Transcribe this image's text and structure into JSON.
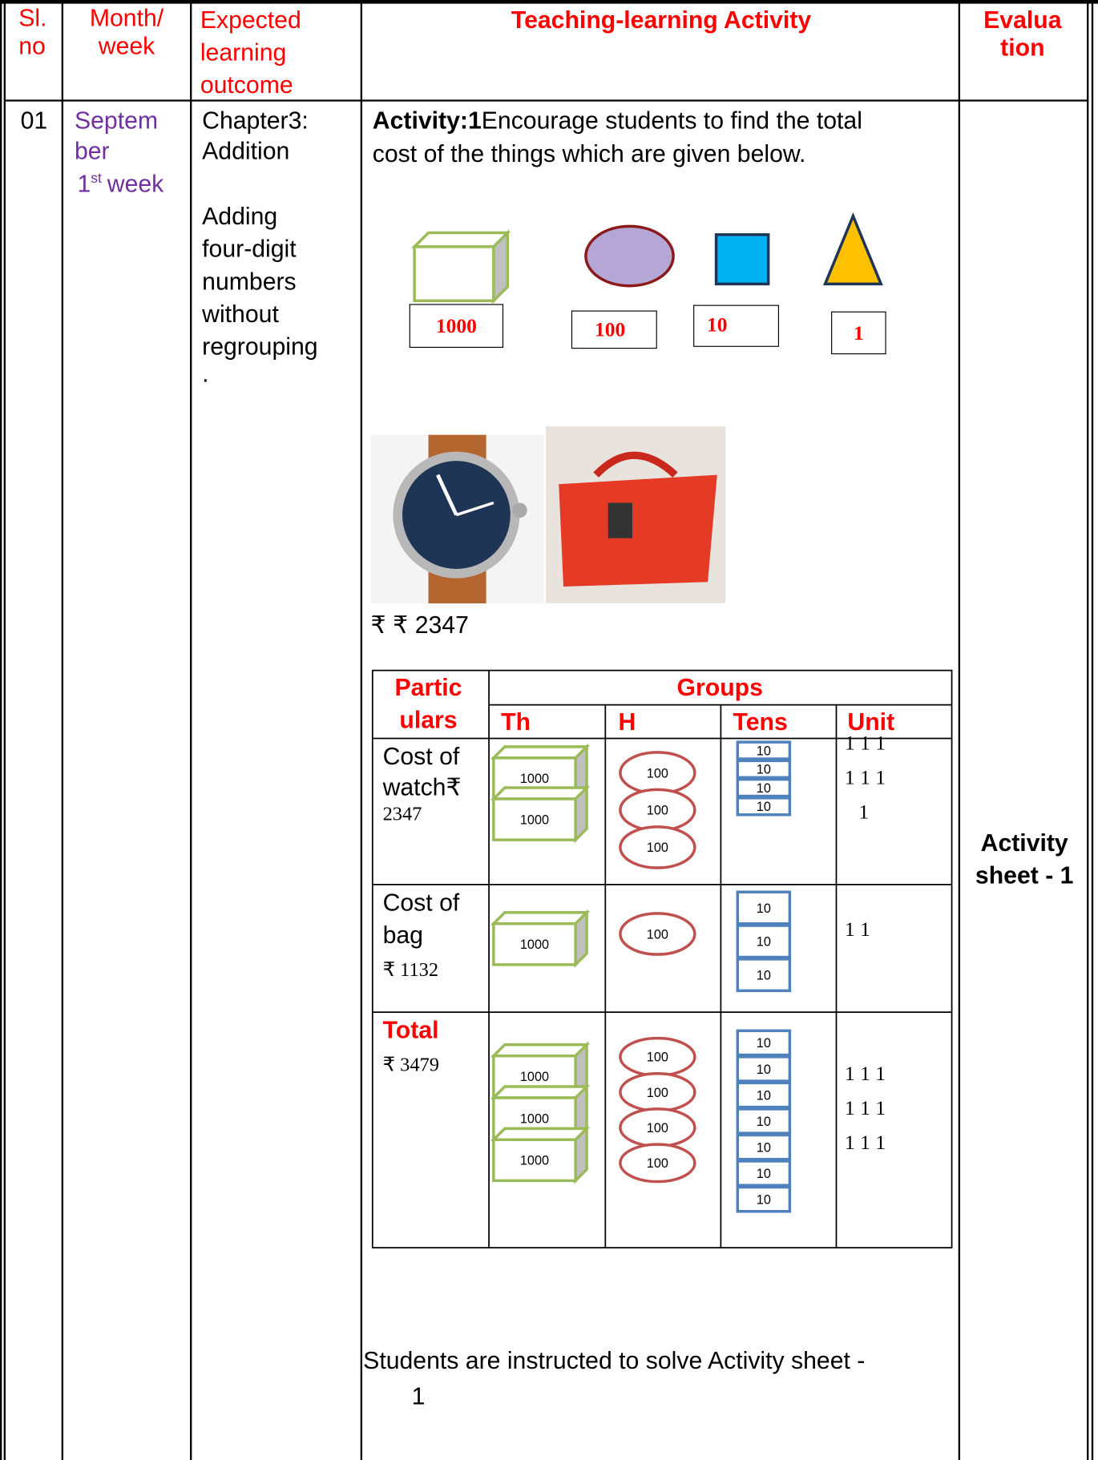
{
  "header": {
    "sl_no": [
      "Sl.",
      "no"
    ],
    "month_week": [
      "Month/",
      "week"
    ],
    "learning_outcome": [
      "Expected",
      "learning",
      "outcome"
    ],
    "activity": "Teaching-learning Activity",
    "evaluation": [
      "Evalua",
      "tion"
    ]
  },
  "row": {
    "sl_no": "01",
    "month": [
      "Septem",
      "ber"
    ],
    "week": {
      "number": "1",
      "suffix": "st",
      "label": "week"
    },
    "outcome": {
      "chapter": [
        "Chapter3:",
        "Addition"
      ],
      "topic": [
        "Adding",
        "four-digit",
        "numbers",
        "without",
        "regrouping"
      ],
      "mark": "."
    },
    "activity": {
      "label": "Activity:1",
      "intro": [
        "Encourage students to find the total",
        "cost of the things which are given below."
      ],
      "shape_values": [
        "1000",
        "100",
        "10",
        "1"
      ],
      "price": "₹ ₹ 2347",
      "table": {
        "header": {
          "particulars": [
            "Partic",
            "ulars"
          ],
          "groups": "Groups",
          "columns": [
            "Th",
            "H",
            "Tens",
            "Unit"
          ]
        },
        "rows": [
          {
            "particulars": [
              "Cost of",
              "watch₹"
            ],
            "amount": "2347",
            "th": [
              "1000",
              "1000"
            ],
            "h": [
              "100",
              "100",
              "100"
            ],
            "tens": [
              "10",
              "10",
              "10",
              "10"
            ],
            "units": [
              "1 1 1",
              "1 1 1",
              "1"
            ]
          },
          {
            "particulars": [
              "Cost of",
              "bag"
            ],
            "amount": "₹ 1132",
            "th": [
              "1000"
            ],
            "h": [
              "100"
            ],
            "tens": [
              "10",
              "10",
              "10"
            ],
            "units": [
              "1   1"
            ]
          },
          {
            "particulars": [
              "Total"
            ],
            "amount": "₹ 3479",
            "th": [
              "1000",
              "1000",
              "1000"
            ],
            "h": [
              "100",
              "100",
              "100",
              "100"
            ],
            "tens": [
              "10",
              "10",
              "10",
              "10",
              "10",
              "10",
              "10"
            ],
            "units": [
              "1 1 1",
              "1 1 1",
              "1 1 1"
            ]
          }
        ]
      },
      "instruction": [
        "Students are instructed to solve Activity sheet -",
        "1"
      ]
    },
    "evaluation": [
      "Activity",
      "sheet - 1"
    ]
  }
}
